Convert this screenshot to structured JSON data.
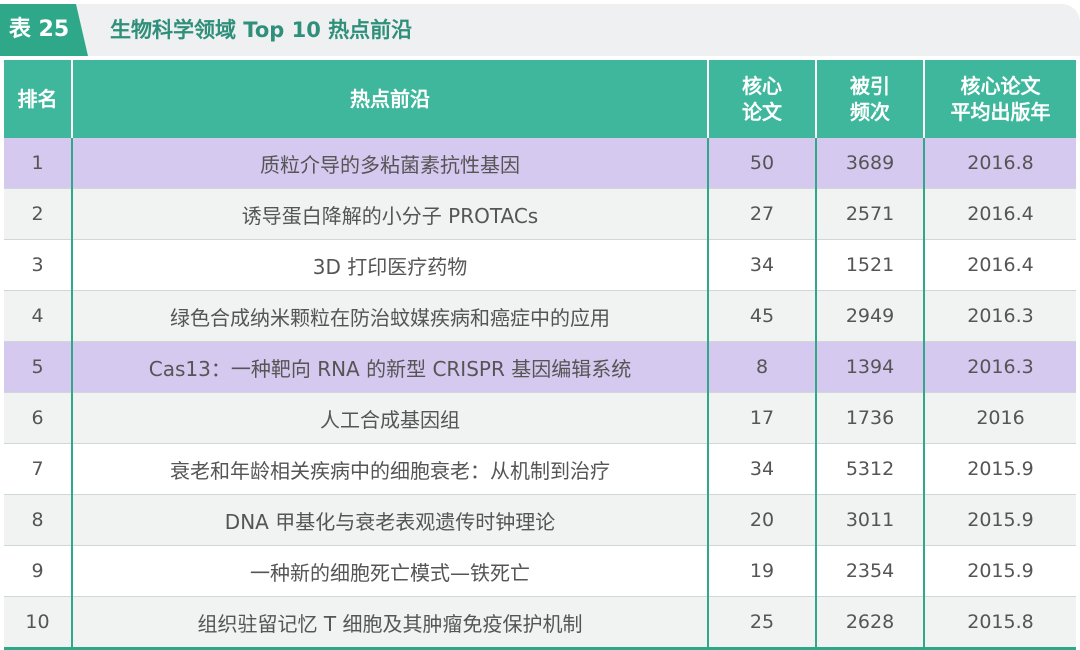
{
  "caption": {
    "tag": "表 25",
    "title": "生物科学领域 Top 10 热点前沿"
  },
  "columns": [
    "排名",
    "热点前沿",
    "核心\n论文",
    "被引\n频次",
    "核心论文\n平均出版年"
  ],
  "rows": [
    {
      "rank": "1",
      "topic": "质粒介导的多粘菌素抗性基因",
      "papers": "50",
      "citations": "3689",
      "year": "2016.8",
      "highlight": "purple"
    },
    {
      "rank": "2",
      "topic": "诱导蛋白降解的小分子 PROTACs",
      "papers": "27",
      "citations": "2571",
      "year": "2016.4",
      "highlight": "grey"
    },
    {
      "rank": "3",
      "topic": "3D 打印医疗药物",
      "papers": "34",
      "citations": "1521",
      "year": "2016.4",
      "highlight": "white"
    },
    {
      "rank": "4",
      "topic": "绿色合成纳米颗粒在防治蚊媒疾病和癌症中的应用",
      "papers": "45",
      "citations": "2949",
      "year": "2016.3",
      "highlight": "grey"
    },
    {
      "rank": "5",
      "topic": "Cas13：一种靶向 RNA 的新型 CRISPR 基因编辑系统",
      "papers": "8",
      "citations": "1394",
      "year": "2016.3",
      "highlight": "purple"
    },
    {
      "rank": "6",
      "topic": "人工合成基因组",
      "papers": "17",
      "citations": "1736",
      "year": "2016",
      "highlight": "grey"
    },
    {
      "rank": "7",
      "topic": "衰老和年龄相关疾病中的细胞衰老：从机制到治疗",
      "papers": "34",
      "citations": "5312",
      "year": "2015.9",
      "highlight": "white"
    },
    {
      "rank": "8",
      "topic": "DNA 甲基化与衰老表观遗传时钟理论",
      "papers": "20",
      "citations": "3011",
      "year": "2015.9",
      "highlight": "grey"
    },
    {
      "rank": "9",
      "topic": "一种新的细胞死亡模式—铁死亡",
      "papers": "19",
      "citations": "2354",
      "year": "2015.9",
      "highlight": "white"
    },
    {
      "rank": "10",
      "topic": "组织驻留记忆 T 细胞及其肿瘤免疫保护机制",
      "papers": "25",
      "citations": "2628",
      "year": "2015.8",
      "highlight": "grey"
    }
  ],
  "colors": {
    "accent": "#3fb79c",
    "highlight": "#d6c9ef",
    "stripe": "#f1f2f2"
  }
}
